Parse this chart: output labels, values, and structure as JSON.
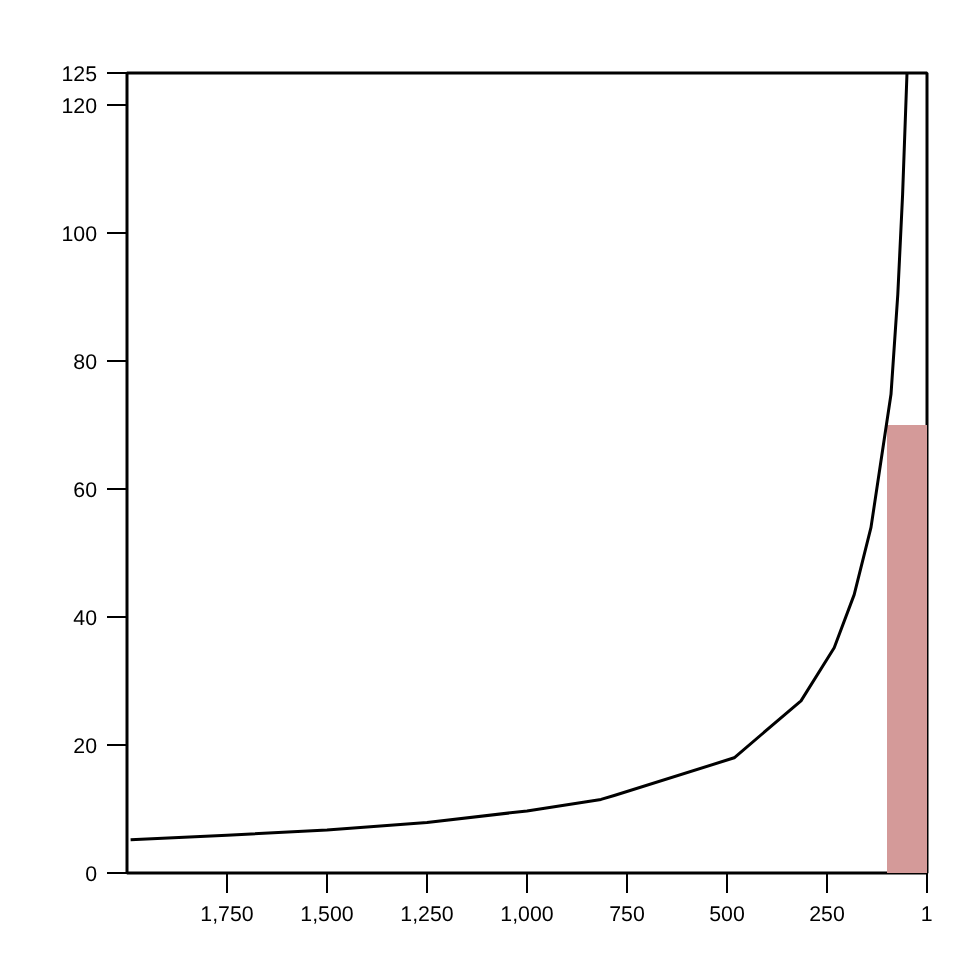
{
  "chart_data": {
    "type": "line",
    "xlim": [
      2000,
      0
    ],
    "ylim": [
      0,
      125
    ],
    "xticks": [
      {
        "value": 1750,
        "label": "1,750"
      },
      {
        "value": 1500,
        "label": "1,500"
      },
      {
        "value": 1250,
        "label": "1,250"
      },
      {
        "value": 1000,
        "label": "1,000"
      },
      750,
      500,
      250,
      1
    ],
    "yticks": [
      0,
      20,
      40,
      60,
      80,
      100,
      120,
      125
    ],
    "grid": false,
    "series": [
      {
        "type": "area",
        "color": "#d49a99",
        "x": [
          100,
          0
        ],
        "values": [
          70,
          70
        ]
      },
      {
        "color": "#000000",
        "x": [
          1991,
          1750,
          1500,
          1250,
          1000,
          815,
          782,
          482,
          315,
          232,
          182,
          140,
          115,
          90,
          73,
          61,
          50
        ],
        "values": [
          5.2,
          5.9,
          6.7,
          7.9,
          9.7,
          11.5,
          12.1,
          18.0,
          26.9,
          35.2,
          43.5,
          54,
          64.4,
          74.8,
          90.4,
          106,
          125
        ]
      }
    ]
  }
}
